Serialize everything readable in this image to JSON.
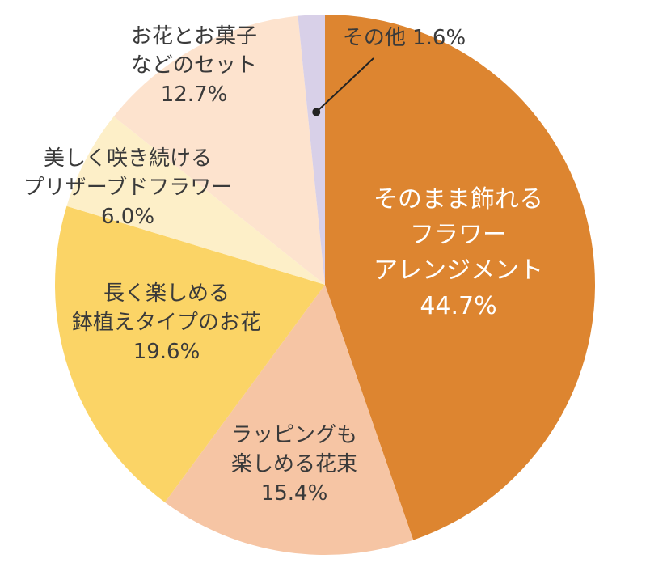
{
  "chart_data": {
    "type": "pie",
    "start_angle_deg": 0,
    "direction": "clockwise",
    "slices": [
      {
        "label_lines": [
          "そのまま飾れる",
          "フラワー",
          "アレンジメント"
        ],
        "value_text": "44.7%",
        "value": 44.7,
        "color": "#dd8530",
        "label_color": "#ffffff"
      },
      {
        "label_lines": [
          "ラッピングも",
          "楽しめる花束"
        ],
        "value_text": "15.4%",
        "value": 15.4,
        "color": "#f6c5a4",
        "label_color": "#3a3a3a"
      },
      {
        "label_lines": [
          "長く楽しめる",
          "鉢植えタイプのお花"
        ],
        "value_text": "19.6%",
        "value": 19.6,
        "color": "#fbd466",
        "label_color": "#3a3a3a"
      },
      {
        "label_lines": [
          "美しく咲き続ける",
          "プリザーブドフラワー"
        ],
        "value_text": "6.0%",
        "value": 6.0,
        "color": "#fdefc8",
        "label_color": "#3a3a3a"
      },
      {
        "label_lines": [
          "お花とお菓子",
          "などのセット"
        ],
        "value_text": "12.7%",
        "value": 12.7,
        "color": "#fde3ce",
        "label_color": "#3a3a3a"
      },
      {
        "label_lines": [
          "その他"
        ],
        "value_text": "1.6%",
        "value": 1.6,
        "color": "#d8d0e8",
        "label_color": "#3a3a3a"
      }
    ]
  }
}
